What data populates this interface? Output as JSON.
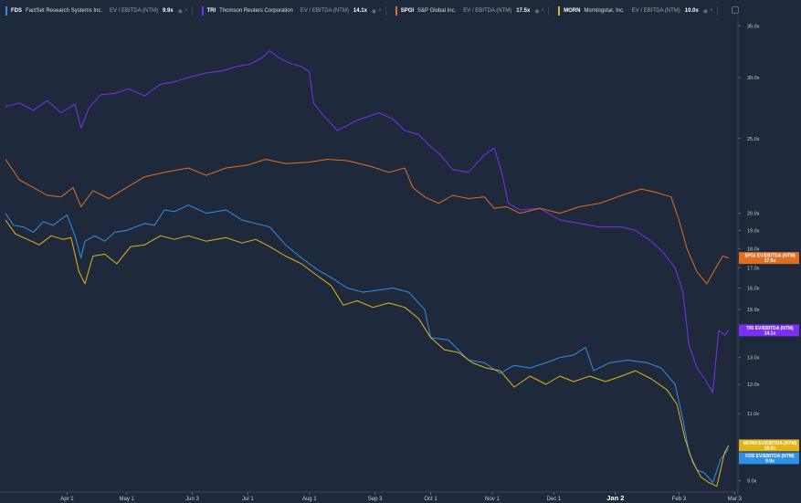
{
  "legend": {
    "items": [
      {
        "ticker": "FDS",
        "name": "FactSet Research Systems Inc.",
        "metric": "EV / EBITDA (NTM)",
        "value": "9.9x",
        "color": "#2f8fe8"
      },
      {
        "ticker": "TRI",
        "name": "Thomson Reuters Corporation",
        "metric": "EV / EBITDA (NTM)",
        "value": "14.1x",
        "color": "#7b2ff2"
      },
      {
        "ticker": "SPGI",
        "name": "S&P Global Inc.",
        "metric": "EV / EBITDA (NTM)",
        "value": "17.5x",
        "color": "#e06e22"
      },
      {
        "ticker": "MORN",
        "name": "Morningstar, Inc.",
        "metric": "EV / EBITDA (NTM)",
        "value": "10.0x",
        "color": "#e3b31a"
      }
    ]
  },
  "chart_data": {
    "type": "line",
    "y_scale": "log",
    "ylim": [
      8.7,
      36
    ],
    "y_ticks": [
      {
        "value": 35,
        "label": "35.0x"
      },
      {
        "value": 30,
        "label": "30.0x"
      },
      {
        "value": 25,
        "label": "25.0x"
      },
      {
        "value": 20,
        "label": "20.0x"
      },
      {
        "value": 19,
        "label": "19.0x"
      },
      {
        "value": 18,
        "label": "18.0x"
      },
      {
        "value": 17,
        "label": "17.0x"
      },
      {
        "value": 16,
        "label": "16.0x"
      },
      {
        "value": 15,
        "label": "15.0x"
      },
      {
        "value": 13,
        "label": "13.0x"
      },
      {
        "value": 12,
        "label": "12.0x"
      },
      {
        "value": 11,
        "label": "11.0x"
      },
      {
        "value": 9,
        "label": "9.0x"
      }
    ],
    "x_range": [
      "2024-03-01",
      "2025-03-01"
    ],
    "x_ticks": [
      {
        "date": "2024-04-01",
        "label": "Apr 1",
        "bold": false
      },
      {
        "date": "2024-05-01",
        "label": "May 1",
        "bold": false
      },
      {
        "date": "2024-06-03",
        "label": "Jun 3",
        "bold": false
      },
      {
        "date": "2024-07-01",
        "label": "Jul 1",
        "bold": false
      },
      {
        "date": "2024-08-01",
        "label": "Aug 1",
        "bold": false
      },
      {
        "date": "2024-09-03",
        "label": "Sep 3",
        "bold": false
      },
      {
        "date": "2024-10-01",
        "label": "Oct 1",
        "bold": false
      },
      {
        "date": "2024-11-01",
        "label": "Nov 1",
        "bold": false
      },
      {
        "date": "2024-12-02",
        "label": "Dec 1",
        "bold": false
      },
      {
        "date": "2025-01-02",
        "label": "Jan 2",
        "bold": true
      },
      {
        "date": "2025-02-03",
        "label": "Feb 3",
        "bold": false
      },
      {
        "date": "2025-03-03",
        "label": "Mar 3",
        "bold": false
      }
    ],
    "series": [
      {
        "name": "FDS EV/EBITDA (NTM)",
        "color": "#2f8fe8",
        "last_label": "9.9x",
        "last_value": 9.9,
        "points": [
          [
            "2024-03-01",
            20.0
          ],
          [
            "2024-03-05",
            19.3
          ],
          [
            "2024-03-10",
            19.2
          ],
          [
            "2024-03-15",
            18.9
          ],
          [
            "2024-03-20",
            19.5
          ],
          [
            "2024-03-25",
            19.3
          ],
          [
            "2024-04-01",
            19.9
          ],
          [
            "2024-04-05",
            18.7
          ],
          [
            "2024-04-08",
            17.5
          ],
          [
            "2024-04-10",
            18.4
          ],
          [
            "2024-04-15",
            18.7
          ],
          [
            "2024-04-20",
            18.4
          ],
          [
            "2024-04-25",
            18.9
          ],
          [
            "2024-05-01",
            19.0
          ],
          [
            "2024-05-10",
            19.4
          ],
          [
            "2024-05-15",
            19.3
          ],
          [
            "2024-05-20",
            20.2
          ],
          [
            "2024-05-25",
            20.1
          ],
          [
            "2024-06-01",
            20.5
          ],
          [
            "2024-06-10",
            20.0
          ],
          [
            "2024-06-20",
            20.2
          ],
          [
            "2024-06-28",
            19.6
          ],
          [
            "2024-07-05",
            19.4
          ],
          [
            "2024-07-12",
            19.2
          ],
          [
            "2024-07-20",
            18.2
          ],
          [
            "2024-07-28",
            17.5
          ],
          [
            "2024-08-05",
            16.9
          ],
          [
            "2024-08-12",
            16.5
          ],
          [
            "2024-08-20",
            16.0
          ],
          [
            "2024-08-28",
            15.8
          ],
          [
            "2024-09-05",
            15.9
          ],
          [
            "2024-09-12",
            16.0
          ],
          [
            "2024-09-20",
            15.8
          ],
          [
            "2024-09-28",
            15.0
          ],
          [
            "2024-10-01",
            13.8
          ],
          [
            "2024-10-10",
            13.7
          ],
          [
            "2024-10-20",
            12.9
          ],
          [
            "2024-10-28",
            12.8
          ],
          [
            "2024-11-05",
            12.4
          ],
          [
            "2024-11-12",
            12.7
          ],
          [
            "2024-11-20",
            12.6
          ],
          [
            "2024-11-28",
            12.8
          ],
          [
            "2024-12-05",
            13.0
          ],
          [
            "2024-12-12",
            13.1
          ],
          [
            "2024-12-18",
            13.4
          ],
          [
            "2024-12-22",
            12.5
          ],
          [
            "2024-12-30",
            12.8
          ],
          [
            "2025-01-08",
            12.9
          ],
          [
            "2025-01-18",
            12.8
          ],
          [
            "2025-01-25",
            12.6
          ],
          [
            "2025-02-01",
            12.0
          ],
          [
            "2025-02-05",
            10.8
          ],
          [
            "2025-02-08",
            9.8
          ],
          [
            "2025-02-12",
            9.3
          ],
          [
            "2025-02-16",
            9.2
          ],
          [
            "2025-02-20",
            8.95
          ],
          [
            "2025-02-24",
            9.6
          ],
          [
            "2025-02-28",
            9.9
          ]
        ]
      },
      {
        "name": "TRI EV/EBITDA (NTM)",
        "color": "#7b2ff2",
        "last_label": "14.1x",
        "last_value": 14.1,
        "points": [
          [
            "2024-03-01",
            27.5
          ],
          [
            "2024-03-08",
            27.8
          ],
          [
            "2024-03-15",
            27.2
          ],
          [
            "2024-03-22",
            28.0
          ],
          [
            "2024-03-29",
            27.0
          ],
          [
            "2024-04-05",
            27.7
          ],
          [
            "2024-04-08",
            25.8
          ],
          [
            "2024-04-12",
            27.4
          ],
          [
            "2024-04-18",
            28.5
          ],
          [
            "2024-04-25",
            28.6
          ],
          [
            "2024-05-02",
            29.0
          ],
          [
            "2024-05-10",
            28.4
          ],
          [
            "2024-05-18",
            29.4
          ],
          [
            "2024-05-25",
            29.6
          ],
          [
            "2024-06-01",
            30.0
          ],
          [
            "2024-06-10",
            30.4
          ],
          [
            "2024-06-18",
            30.6
          ],
          [
            "2024-06-25",
            31.0
          ],
          [
            "2024-07-02",
            31.2
          ],
          [
            "2024-07-08",
            31.8
          ],
          [
            "2024-07-12",
            32.5
          ],
          [
            "2024-07-16",
            31.9
          ],
          [
            "2024-07-22",
            31.3
          ],
          [
            "2024-07-28",
            31.0
          ],
          [
            "2024-08-01",
            30.5
          ],
          [
            "2024-08-03",
            27.8
          ],
          [
            "2024-08-08",
            26.8
          ],
          [
            "2024-08-15",
            25.6
          ],
          [
            "2024-08-25",
            26.4
          ],
          [
            "2024-09-05",
            27.0
          ],
          [
            "2024-09-12",
            26.5
          ],
          [
            "2024-09-18",
            25.6
          ],
          [
            "2024-09-25",
            25.3
          ],
          [
            "2024-10-01",
            24.4
          ],
          [
            "2024-10-06",
            23.8
          ],
          [
            "2024-10-12",
            22.8
          ],
          [
            "2024-10-20",
            22.6
          ],
          [
            "2024-10-28",
            23.8
          ],
          [
            "2024-11-02",
            24.3
          ],
          [
            "2024-11-06",
            22.5
          ],
          [
            "2024-11-09",
            20.6
          ],
          [
            "2024-11-15",
            20.2
          ],
          [
            "2024-11-25",
            20.3
          ],
          [
            "2024-12-05",
            19.6
          ],
          [
            "2024-12-15",
            19.4
          ],
          [
            "2024-12-25",
            19.2
          ],
          [
            "2025-01-05",
            19.2
          ],
          [
            "2025-01-12",
            19.0
          ],
          [
            "2025-01-20",
            18.4
          ],
          [
            "2025-01-26",
            17.8
          ],
          [
            "2025-02-01",
            17.0
          ],
          [
            "2025-02-05",
            15.8
          ],
          [
            "2025-02-08",
            13.5
          ],
          [
            "2025-02-12",
            12.6
          ],
          [
            "2025-02-16",
            12.2
          ],
          [
            "2025-02-20",
            11.7
          ],
          [
            "2025-02-23",
            14.1
          ],
          [
            "2025-02-26",
            13.9
          ],
          [
            "2025-02-28",
            14.1
          ]
        ]
      },
      {
        "name": "SPGI EV/EBITDA (NTM)",
        "color": "#e06e22",
        "last_label": "17.5x",
        "last_value": 17.5,
        "points": [
          [
            "2024-03-01",
            23.5
          ],
          [
            "2024-03-08",
            22.1
          ],
          [
            "2024-03-15",
            21.6
          ],
          [
            "2024-03-22",
            21.1
          ],
          [
            "2024-03-29",
            21.0
          ],
          [
            "2024-04-04",
            21.6
          ],
          [
            "2024-04-08",
            20.4
          ],
          [
            "2024-04-14",
            21.4
          ],
          [
            "2024-04-22",
            20.9
          ],
          [
            "2024-05-01",
            21.6
          ],
          [
            "2024-05-10",
            22.3
          ],
          [
            "2024-05-20",
            22.6
          ],
          [
            "2024-06-01",
            22.9
          ],
          [
            "2024-06-10",
            22.4
          ],
          [
            "2024-06-20",
            22.9
          ],
          [
            "2024-07-01",
            23.1
          ],
          [
            "2024-07-10",
            23.5
          ],
          [
            "2024-07-20",
            23.2
          ],
          [
            "2024-08-01",
            23.3
          ],
          [
            "2024-08-10",
            23.5
          ],
          [
            "2024-08-20",
            23.4
          ],
          [
            "2024-09-01",
            23.0
          ],
          [
            "2024-09-10",
            22.6
          ],
          [
            "2024-09-18",
            22.9
          ],
          [
            "2024-09-22",
            21.6
          ],
          [
            "2024-09-28",
            21.0
          ],
          [
            "2024-10-05",
            20.6
          ],
          [
            "2024-10-12",
            21.1
          ],
          [
            "2024-10-20",
            20.9
          ],
          [
            "2024-10-28",
            21.0
          ],
          [
            "2024-11-02",
            20.3
          ],
          [
            "2024-11-08",
            20.4
          ],
          [
            "2024-11-15",
            20.0
          ],
          [
            "2024-11-25",
            20.3
          ],
          [
            "2024-12-05",
            20.0
          ],
          [
            "2024-12-15",
            20.4
          ],
          [
            "2024-12-25",
            20.6
          ],
          [
            "2025-01-03",
            21.0
          ],
          [
            "2025-01-10",
            21.3
          ],
          [
            "2025-01-15",
            21.5
          ],
          [
            "2025-01-22",
            21.3
          ],
          [
            "2025-01-30",
            21.0
          ],
          [
            "2025-02-03",
            19.6
          ],
          [
            "2025-02-07",
            18.0
          ],
          [
            "2025-02-12",
            16.8
          ],
          [
            "2025-02-17",
            16.2
          ],
          [
            "2025-02-21",
            16.9
          ],
          [
            "2025-02-25",
            17.6
          ],
          [
            "2025-02-28",
            17.5
          ]
        ]
      },
      {
        "name": "MORN EV/EBITDA (NTM)",
        "color": "#e3b31a",
        "last_label": "10.0x",
        "last_value": 10.0,
        "points": [
          [
            "2024-03-01",
            19.6
          ],
          [
            "2024-03-06",
            18.8
          ],
          [
            "2024-03-12",
            18.5
          ],
          [
            "2024-03-18",
            18.2
          ],
          [
            "2024-03-24",
            18.7
          ],
          [
            "2024-03-30",
            18.5
          ],
          [
            "2024-04-03",
            18.6
          ],
          [
            "2024-04-07",
            16.8
          ],
          [
            "2024-04-10",
            16.2
          ],
          [
            "2024-04-14",
            17.6
          ],
          [
            "2024-04-20",
            17.7
          ],
          [
            "2024-04-26",
            17.2
          ],
          [
            "2024-05-03",
            18.1
          ],
          [
            "2024-05-10",
            18.2
          ],
          [
            "2024-05-18",
            18.7
          ],
          [
            "2024-05-25",
            18.5
          ],
          [
            "2024-06-01",
            18.7
          ],
          [
            "2024-06-10",
            18.4
          ],
          [
            "2024-06-20",
            18.6
          ],
          [
            "2024-06-28",
            18.3
          ],
          [
            "2024-07-05",
            18.5
          ],
          [
            "2024-07-12",
            18.1
          ],
          [
            "2024-07-20",
            17.6
          ],
          [
            "2024-07-28",
            17.2
          ],
          [
            "2024-08-05",
            16.6
          ],
          [
            "2024-08-12",
            16.1
          ],
          [
            "2024-08-18",
            15.2
          ],
          [
            "2024-08-25",
            15.4
          ],
          [
            "2024-09-02",
            15.1
          ],
          [
            "2024-09-10",
            15.3
          ],
          [
            "2024-09-18",
            15.1
          ],
          [
            "2024-09-25",
            14.6
          ],
          [
            "2024-10-01",
            13.8
          ],
          [
            "2024-10-08",
            13.3
          ],
          [
            "2024-10-15",
            13.2
          ],
          [
            "2024-10-22",
            12.8
          ],
          [
            "2024-10-29",
            12.6
          ],
          [
            "2024-11-05",
            12.5
          ],
          [
            "2024-11-12",
            11.9
          ],
          [
            "2024-11-20",
            12.3
          ],
          [
            "2024-11-28",
            12.0
          ],
          [
            "2024-12-05",
            12.3
          ],
          [
            "2024-12-12",
            12.1
          ],
          [
            "2024-12-20",
            12.3
          ],
          [
            "2024-12-28",
            12.1
          ],
          [
            "2025-01-05",
            12.3
          ],
          [
            "2025-01-12",
            12.5
          ],
          [
            "2025-01-20",
            12.2
          ],
          [
            "2025-01-28",
            11.8
          ],
          [
            "2025-02-02",
            11.3
          ],
          [
            "2025-02-06",
            10.2
          ],
          [
            "2025-02-10",
            9.5
          ],
          [
            "2025-02-14",
            9.1
          ],
          [
            "2025-02-18",
            8.95
          ],
          [
            "2025-02-22",
            8.85
          ],
          [
            "2025-02-26",
            9.8
          ],
          [
            "2025-02-28",
            10.0
          ]
        ]
      }
    ],
    "end_badges": [
      {
        "ticker": "SPGI",
        "line1": "SPGI EV/EBITDA (NTM)",
        "line2": "17.5x",
        "color": "#e06e22"
      },
      {
        "ticker": "TRI",
        "line1": "TRI EV/EBITDA (NTM)",
        "line2": "14.1x",
        "color": "#7b2ff2"
      },
      {
        "ticker": "MORN",
        "line1": "MORN EV/EBITDA (NTM)",
        "line2": "10.0x",
        "color": "#e3b31a"
      },
      {
        "ticker": "FDS",
        "line1": "FDS EV/EBITDA (NTM)",
        "line2": "9.9x",
        "color": "#2f8fe8"
      }
    ],
    "grid": false,
    "legend_position": "top"
  }
}
